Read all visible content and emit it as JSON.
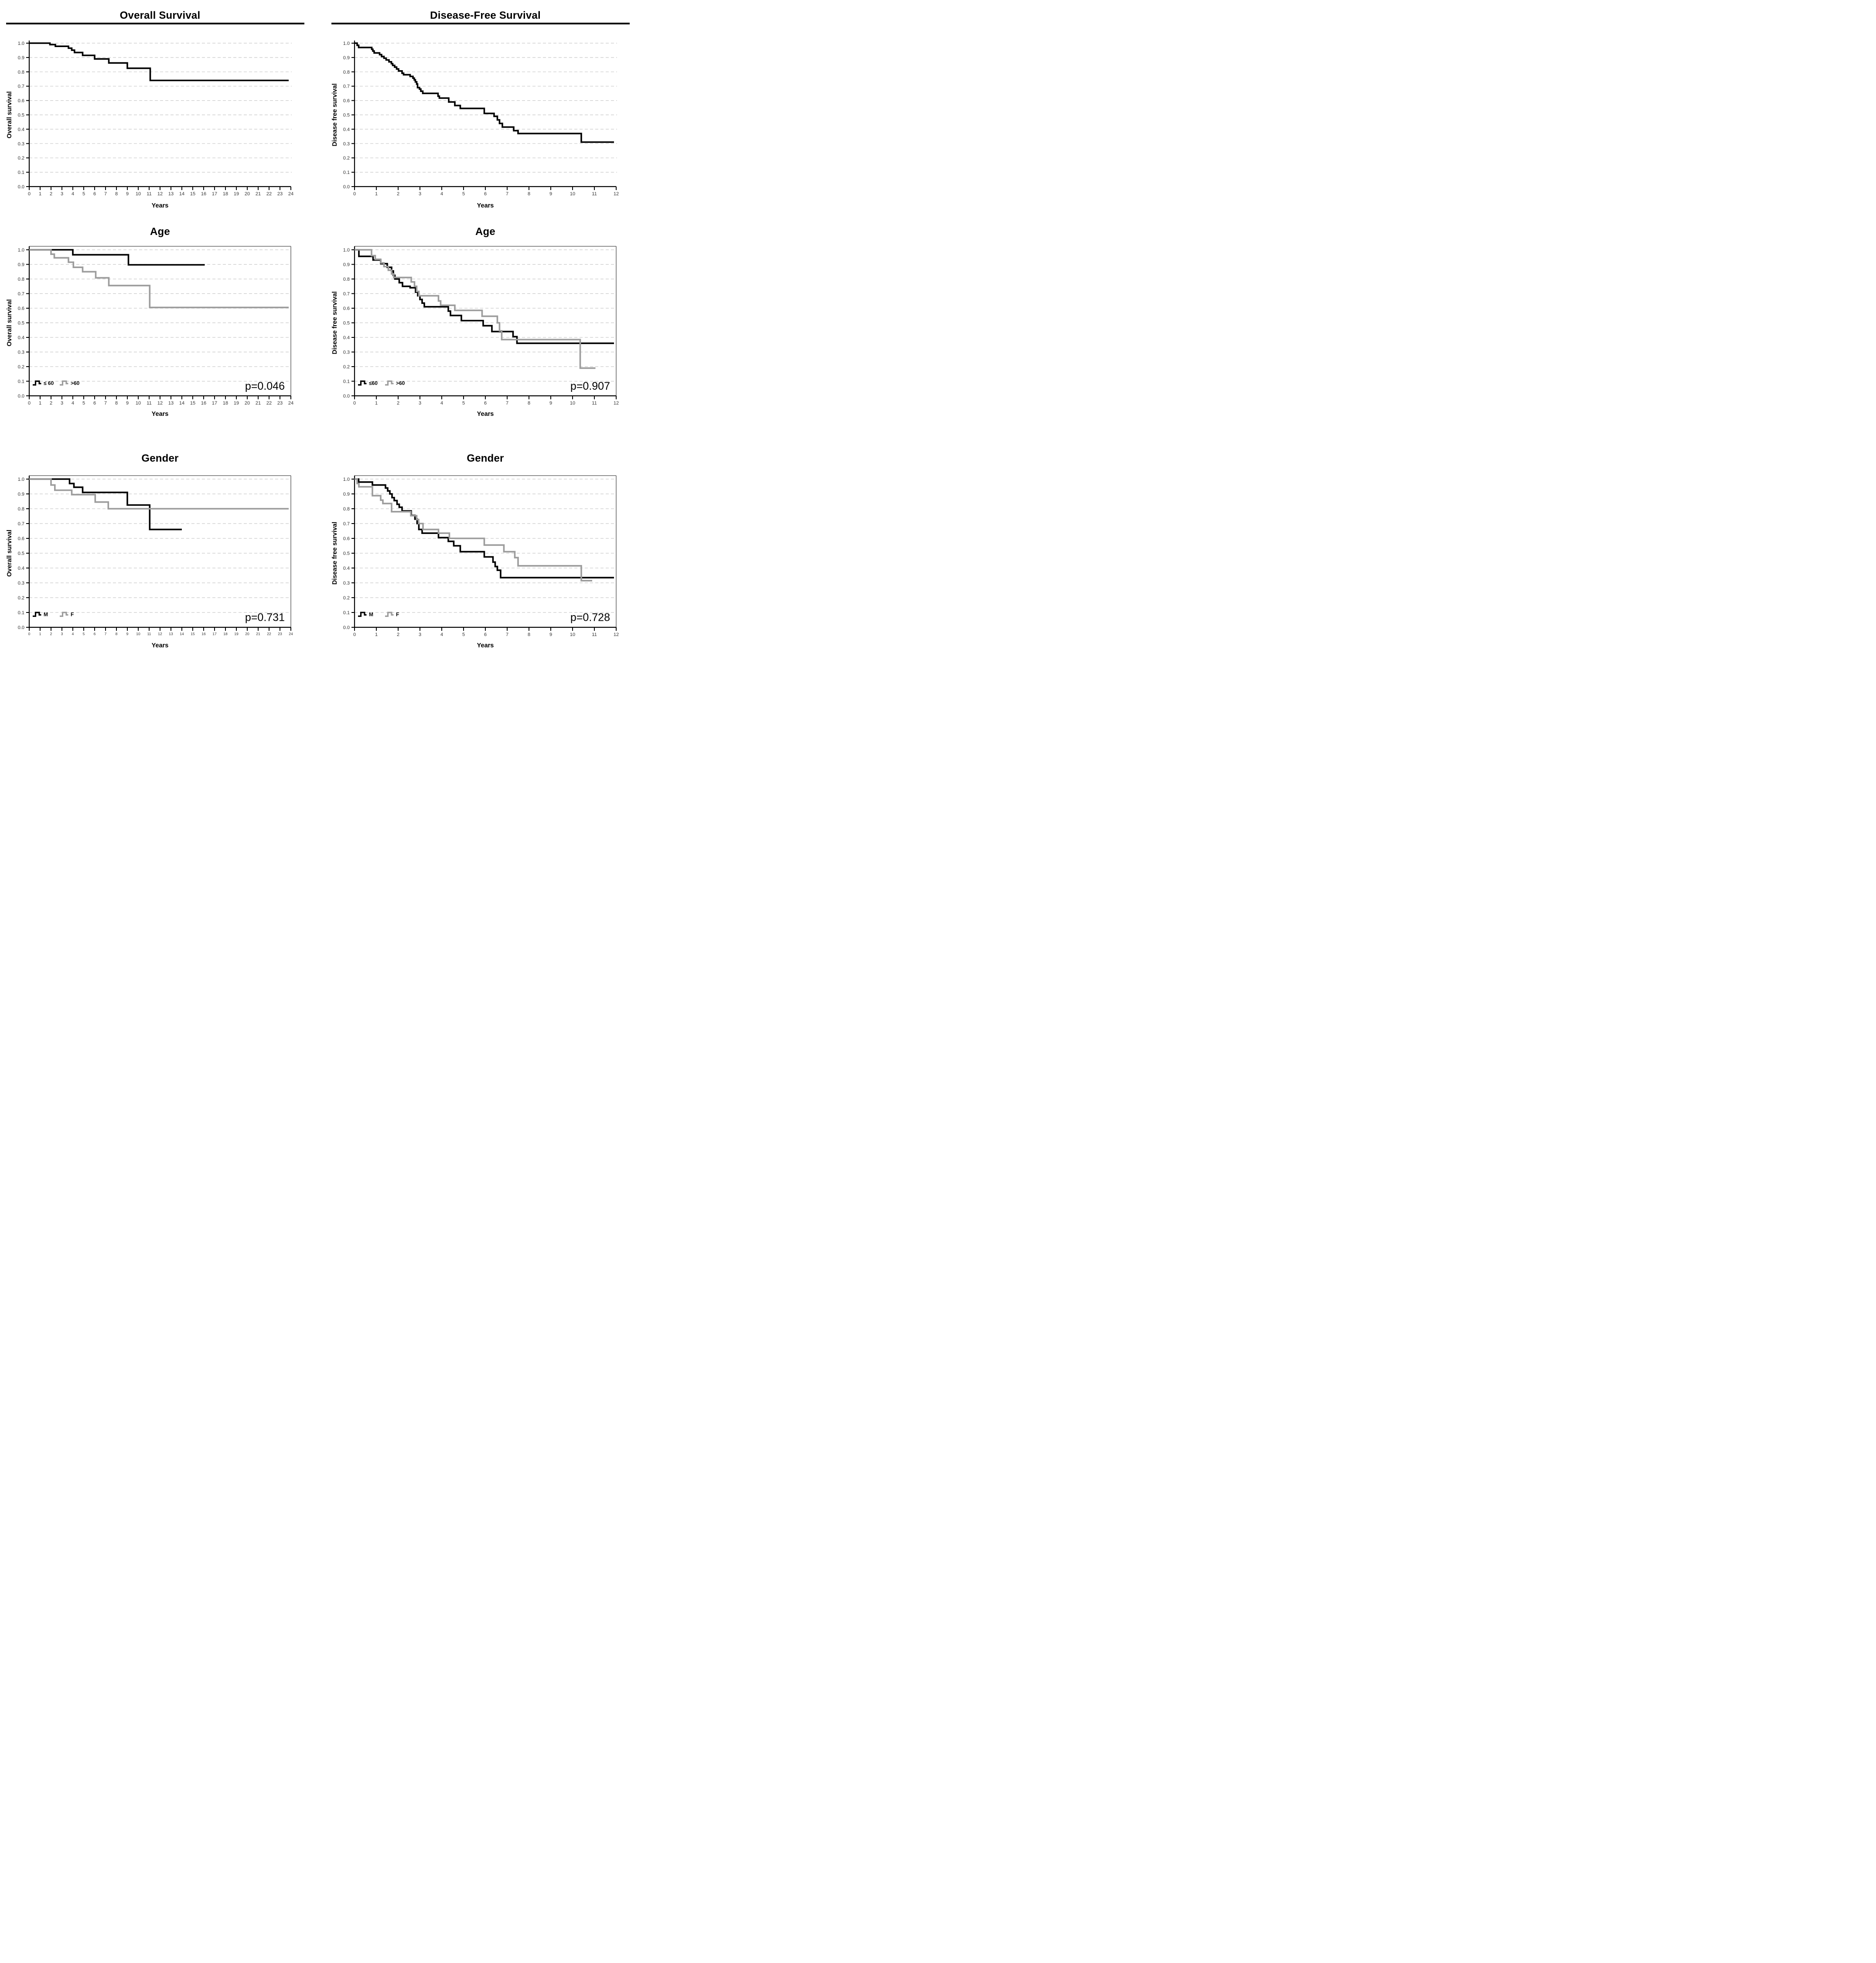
{
  "colors": {
    "curve_black": "#000000",
    "curve_gray": "#9c9c9c",
    "grid": "#c9c9c9",
    "axis": "#000000",
    "frame": "#4a4a4a",
    "tick_text": "#333333",
    "title_rule": "#0a0a0a"
  },
  "chart_data": [
    {
      "id": "overall-survival",
      "type": "line",
      "step": true,
      "title": "Overall Survival",
      "title_underline": true,
      "xlabel": "Years",
      "ylabel": "Overall survival",
      "xlim": [
        0,
        24
      ],
      "ylim": [
        0.0,
        1.0
      ],
      "xticks": [
        0,
        1,
        2,
        3,
        4,
        5,
        6,
        7,
        8,
        9,
        10,
        11,
        12,
        13,
        14,
        15,
        16,
        17,
        18,
        19,
        20,
        21,
        22,
        23,
        24
      ],
      "ytick_labels": [
        "0.0",
        "0.1",
        "0.2",
        "0.3",
        "0.4",
        "0.5",
        "0.6",
        "0.7",
        "0.8",
        "0.9",
        "1.0"
      ],
      "grid": "horizontal-dashed",
      "framed": false,
      "small_xticks": false,
      "legend": [],
      "p_value": null,
      "series": [
        {
          "name": "all",
          "color": "#000000",
          "steps": [
            [
              0,
              1
            ],
            [
              1.9,
              0.99
            ],
            [
              2.4,
              0.978
            ],
            [
              3.6,
              0.965
            ],
            [
              3.9,
              0.951
            ],
            [
              4.15,
              0.935
            ],
            [
              4.9,
              0.915
            ],
            [
              6,
              0.89
            ],
            [
              7.3,
              0.862
            ],
            [
              9,
              0.825
            ],
            [
              11.1,
              0.74
            ],
            [
              23.8,
              0.74
            ]
          ]
        }
      ]
    },
    {
      "id": "disease-free-survival",
      "type": "line",
      "step": true,
      "title": "Disease-Free Survival",
      "title_underline": true,
      "xlabel": "Years",
      "ylabel": "Disease free survival",
      "xlim": [
        0,
        12
      ],
      "ylim": [
        0.0,
        1.0
      ],
      "xticks": [
        0,
        1,
        2,
        3,
        4,
        5,
        6,
        7,
        8,
        9,
        10,
        11,
        12
      ],
      "ytick_labels": [
        "0.0",
        "0.1",
        "0.2",
        "0.3",
        "0.4",
        "0.5",
        "0.6",
        "0.7",
        "0.8",
        "0.9",
        "1.0"
      ],
      "grid": "horizontal-dashed",
      "framed": false,
      "small_xticks": false,
      "legend": [],
      "p_value": null,
      "series": [
        {
          "name": "all",
          "color": "#000000",
          "steps": [
            [
              0,
              1
            ],
            [
              0.12,
              0.985
            ],
            [
              0.19,
              0.97
            ],
            [
              0.79,
              0.957
            ],
            [
              0.84,
              0.945
            ],
            [
              0.9,
              0.932
            ],
            [
              1.15,
              0.92
            ],
            [
              1.24,
              0.907
            ],
            [
              1.35,
              0.895
            ],
            [
              1.45,
              0.883
            ],
            [
              1.58,
              0.87
            ],
            [
              1.69,
              0.857
            ],
            [
              1.75,
              0.845
            ],
            [
              1.84,
              0.833
            ],
            [
              1.93,
              0.82
            ],
            [
              2.02,
              0.806
            ],
            [
              2.18,
              0.79
            ],
            [
              2.25,
              0.78
            ],
            [
              2.55,
              0.768
            ],
            [
              2.68,
              0.756
            ],
            [
              2.74,
              0.744
            ],
            [
              2.79,
              0.73
            ],
            [
              2.85,
              0.715
            ],
            [
              2.89,
              0.69
            ],
            [
              2.98,
              0.68
            ],
            [
              3.04,
              0.665
            ],
            [
              3.13,
              0.65
            ],
            [
              3.83,
              0.63
            ],
            [
              3.89,
              0.617
            ],
            [
              4.32,
              0.59
            ],
            [
              4.6,
              0.565
            ],
            [
              4.85,
              0.545
            ],
            [
              5.95,
              0.51
            ],
            [
              6.4,
              0.49
            ],
            [
              6.55,
              0.465
            ],
            [
              6.65,
              0.44
            ],
            [
              6.78,
              0.415
            ],
            [
              7.3,
              0.39
            ],
            [
              7.5,
              0.37
            ],
            [
              10.4,
              0.31
            ],
            [
              11.9,
              0.31
            ]
          ]
        }
      ]
    },
    {
      "id": "age-overall-survival",
      "type": "line",
      "step": true,
      "title": "Age",
      "title_underline": false,
      "xlabel": "Years",
      "ylabel": "Overall survival",
      "xlim": [
        0,
        24
      ],
      "ylim": [
        0.0,
        1.0
      ],
      "xticks": [
        0,
        1,
        2,
        3,
        4,
        5,
        6,
        7,
        8,
        9,
        10,
        11,
        12,
        13,
        14,
        15,
        16,
        17,
        18,
        19,
        20,
        21,
        22,
        23,
        24
      ],
      "ytick_labels": [
        "0.0",
        "0.1",
        "0.2",
        "0.3",
        "0.4",
        "0.5",
        "0.6",
        "0.7",
        "0.8",
        "0.9",
        "1.0"
      ],
      "grid": "horizontal-dashed",
      "framed": true,
      "small_xticks": false,
      "legend": [
        {
          "label": "≤ 60",
          "color": "#000000"
        },
        {
          "label": ">60",
          "color": "#9c9c9c"
        }
      ],
      "p_value": "p=0.046",
      "series": [
        {
          "name": "le60",
          "color": "#000000",
          "steps": [
            [
              0,
              1
            ],
            [
              4,
              0.966
            ],
            [
              9.1,
              0.897
            ],
            [
              16.1,
              0.897
            ]
          ]
        },
        {
          "name": "gt60",
          "color": "#9c9c9c",
          "steps": [
            [
              0,
              1
            ],
            [
              2,
              0.97
            ],
            [
              2.3,
              0.945
            ],
            [
              3.6,
              0.915
            ],
            [
              4.05,
              0.88
            ],
            [
              4.9,
              0.85
            ],
            [
              6.1,
              0.808
            ],
            [
              7.3,
              0.755
            ],
            [
              11.05,
              0.605
            ],
            [
              23.8,
              0.605
            ]
          ]
        }
      ]
    },
    {
      "id": "age-disease-free-survival",
      "type": "line",
      "step": true,
      "title": "Age",
      "title_underline": false,
      "xlabel": "Years",
      "ylabel": "Disease free survival",
      "xlim": [
        0,
        12
      ],
      "ylim": [
        0.0,
        1.0
      ],
      "xticks": [
        0,
        1,
        2,
        3,
        4,
        5,
        6,
        7,
        8,
        9,
        10,
        11,
        12
      ],
      "ytick_labels": [
        "0.0",
        "0.1",
        "0.2",
        "0.3",
        "0.4",
        "0.5",
        "0.6",
        "0.7",
        "0.8",
        "0.9",
        "1.0"
      ],
      "grid": "horizontal-dashed",
      "framed": true,
      "small_xticks": false,
      "legend": [
        {
          "label": "≤60",
          "color": "#000000"
        },
        {
          "label": ">60",
          "color": "#9c9c9c"
        }
      ],
      "p_value": "p=0.907",
      "series": [
        {
          "name": "le60",
          "color": "#000000",
          "steps": [
            [
              0,
              1
            ],
            [
              0.2,
              0.955
            ],
            [
              0.85,
              0.93
            ],
            [
              1.2,
              0.905
            ],
            [
              1.5,
              0.88
            ],
            [
              1.7,
              0.855
            ],
            [
              1.78,
              0.825
            ],
            [
              1.85,
              0.8
            ],
            [
              2.05,
              0.775
            ],
            [
              2.2,
              0.75
            ],
            [
              2.55,
              0.74
            ],
            [
              2.8,
              0.71
            ],
            [
              2.9,
              0.685
            ],
            [
              3,
              0.66
            ],
            [
              3.1,
              0.635
            ],
            [
              3.2,
              0.61
            ],
            [
              4.3,
              0.58
            ],
            [
              4.4,
              0.55
            ],
            [
              4.9,
              0.515
            ],
            [
              5.9,
              0.48
            ],
            [
              6.3,
              0.44
            ],
            [
              7.27,
              0.405
            ],
            [
              7.45,
              0.36
            ],
            [
              11.9,
              0.36
            ]
          ]
        },
        {
          "name": "gt60",
          "color": "#9c9c9c",
          "steps": [
            [
              0,
              1
            ],
            [
              0.78,
              0.96
            ],
            [
              0.95,
              0.935
            ],
            [
              1.2,
              0.91
            ],
            [
              1.35,
              0.885
            ],
            [
              1.55,
              0.86
            ],
            [
              1.7,
              0.835
            ],
            [
              1.8,
              0.81
            ],
            [
              2.6,
              0.78
            ],
            [
              2.75,
              0.75
            ],
            [
              2.85,
              0.715
            ],
            [
              2.95,
              0.685
            ],
            [
              3.85,
              0.65
            ],
            [
              3.95,
              0.62
            ],
            [
              4.6,
              0.585
            ],
            [
              5.85,
              0.545
            ],
            [
              6.55,
              0.5
            ],
            [
              6.65,
              0.445
            ],
            [
              6.75,
              0.385
            ],
            [
              10.35,
              0.19
            ],
            [
              11.05,
              0.19
            ]
          ]
        }
      ]
    },
    {
      "id": "gender-overall-survival",
      "type": "line",
      "step": true,
      "title": "Gender",
      "title_underline": false,
      "xlabel": "Years",
      "ylabel": "Overall survival",
      "xlim": [
        0,
        24
      ],
      "ylim": [
        0.0,
        1.0
      ],
      "xticks": [
        0,
        1,
        2,
        3,
        4,
        5,
        6,
        7,
        8,
        9,
        10,
        11,
        12,
        13,
        14,
        15,
        16,
        17,
        18,
        19,
        20,
        21,
        22,
        23,
        24
      ],
      "ytick_labels": [
        "0.0",
        "0.1",
        "0.2",
        "0.3",
        "0.4",
        "0.5",
        "0.6",
        "0.7",
        "0.8",
        "0.9",
        "1.0"
      ],
      "grid": "horizontal-dashed",
      "framed": true,
      "small_xticks": true,
      "legend": [
        {
          "label": "M",
          "color": "#000000"
        },
        {
          "label": "F",
          "color": "#9c9c9c"
        }
      ],
      "p_value": "p=0.731",
      "series": [
        {
          "name": "male",
          "color": "#000000",
          "steps": [
            [
              0,
              1
            ],
            [
              3.7,
              0.97
            ],
            [
              4.1,
              0.945
            ],
            [
              4.9,
              0.91
            ],
            [
              9,
              0.825
            ],
            [
              11.05,
              0.66
            ],
            [
              14,
              0.66
            ]
          ]
        },
        {
          "name": "female",
          "color": "#9c9c9c",
          "steps": [
            [
              0,
              1
            ],
            [
              2,
              0.96
            ],
            [
              2.35,
              0.925
            ],
            [
              3.9,
              0.895
            ],
            [
              6.05,
              0.845
            ],
            [
              7.25,
              0.8
            ],
            [
              23.8,
              0.8
            ]
          ]
        }
      ]
    },
    {
      "id": "gender-disease-free-survival",
      "type": "line",
      "step": true,
      "title": "Gender",
      "title_underline": false,
      "xlabel": "Years",
      "ylabel": "Disease free survival",
      "xlim": [
        0,
        12
      ],
      "ylim": [
        0.0,
        1.0
      ],
      "xticks": [
        0,
        1,
        2,
        3,
        4,
        5,
        6,
        7,
        8,
        9,
        10,
        11,
        12
      ],
      "ytick_labels": [
        "0.0",
        "0.1",
        "0.2",
        "0.3",
        "0.4",
        "0.5",
        "0.6",
        "0.7",
        "0.8",
        "0.9",
        "1.0"
      ],
      "grid": "horizontal-dashed",
      "framed": true,
      "small_xticks": false,
      "legend": [
        {
          "label": "M",
          "color": "#000000"
        },
        {
          "label": "F",
          "color": "#9c9c9c"
        }
      ],
      "p_value": "p=0.728",
      "series": [
        {
          "name": "male",
          "color": "#000000",
          "steps": [
            [
              0,
              1
            ],
            [
              0.19,
              0.98
            ],
            [
              0.82,
              0.96
            ],
            [
              1.42,
              0.94
            ],
            [
              1.52,
              0.92
            ],
            [
              1.62,
              0.9
            ],
            [
              1.72,
              0.875
            ],
            [
              1.82,
              0.855
            ],
            [
              1.95,
              0.83
            ],
            [
              2.05,
              0.81
            ],
            [
              2.18,
              0.785
            ],
            [
              2.6,
              0.755
            ],
            [
              2.77,
              0.73
            ],
            [
              2.87,
              0.7
            ],
            [
              2.95,
              0.66
            ],
            [
              3.1,
              0.635
            ],
            [
              3.85,
              0.605
            ],
            [
              4.3,
              0.58
            ],
            [
              4.55,
              0.55
            ],
            [
              4.85,
              0.51
            ],
            [
              5.95,
              0.475
            ],
            [
              6.35,
              0.44
            ],
            [
              6.45,
              0.41
            ],
            [
              6.55,
              0.385
            ],
            [
              6.7,
              0.335
            ],
            [
              11.9,
              0.335
            ]
          ]
        },
        {
          "name": "female",
          "color": "#9c9c9c",
          "steps": [
            [
              0,
              1
            ],
            [
              0.12,
              0.97
            ],
            [
              0.2,
              0.948
            ],
            [
              0.82,
              0.888
            ],
            [
              1.2,
              0.858
            ],
            [
              1.3,
              0.835
            ],
            [
              1.7,
              0.78
            ],
            [
              2.58,
              0.753
            ],
            [
              2.85,
              0.727
            ],
            [
              2.94,
              0.7
            ],
            [
              3.14,
              0.66
            ],
            [
              3.85,
              0.635
            ],
            [
              4.35,
              0.6
            ],
            [
              5.95,
              0.555
            ],
            [
              6.85,
              0.51
            ],
            [
              7.35,
              0.47
            ],
            [
              7.5,
              0.415
            ],
            [
              10.4,
              0.315
            ],
            [
              10.9,
              0.315
            ]
          ]
        }
      ]
    }
  ]
}
